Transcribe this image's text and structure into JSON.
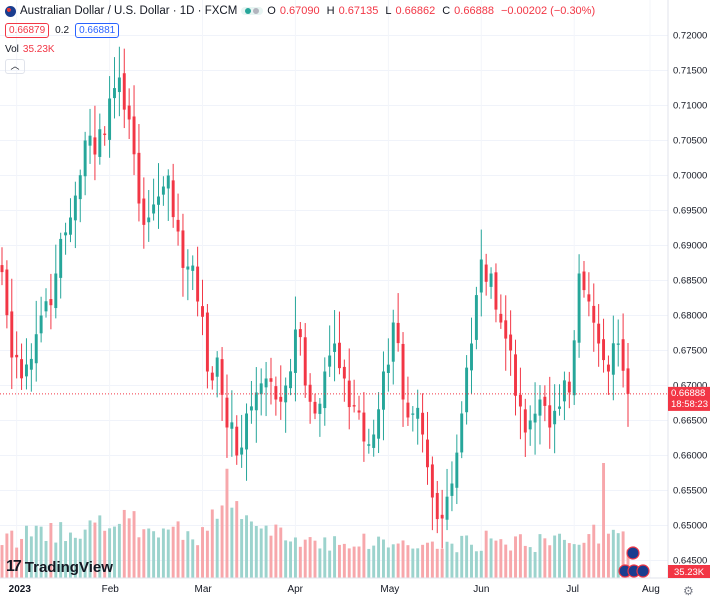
{
  "legend": {
    "symbol": "Australian Dollar / U.S. Dollar · 1D · FXCM",
    "o_label": "O",
    "o": "0.67090",
    "h_label": "H",
    "h": "0.67135",
    "l_label": "L",
    "l": "0.66862",
    "c_label": "C",
    "c": "0.66888",
    "change": "−0.00202 (−0.30%)",
    "bid": "0.66879",
    "spread": "0.2",
    "ask": "0.66881",
    "vol_label": "Vol",
    "vol_value": "35.23K",
    "collapse_icon": "chevron-up-icon"
  },
  "logo": {
    "text": "TradingView",
    "icon": "tradingview-logo-icon"
  },
  "colors": {
    "up": "#26a69a",
    "down": "#f23645",
    "volUp": "#9cd3cd",
    "volDown": "#f7a7ab"
  },
  "chart_data": {
    "type": "candlestick",
    "title": "Australian Dollar / U.S. Dollar · 1D · FXCM",
    "y_ticks": [
      0.645,
      0.65,
      0.655,
      0.66,
      0.665,
      0.67,
      0.675,
      0.68,
      0.685,
      0.69,
      0.695,
      0.7,
      0.705,
      0.71,
      0.715,
      0.72
    ],
    "y_tick_labels": [
      "0.64500",
      "0.65000",
      "0.65500",
      "0.66000",
      "0.66500",
      "0.67000",
      "0.67500",
      "0.68000",
      "0.68500",
      "0.69000",
      "0.69500",
      "0.70000",
      "0.70500",
      "0.71000",
      "0.71500",
      "0.72000"
    ],
    "x_labels": [
      "2023",
      "Feb",
      "Mar",
      "Apr",
      "May",
      "Jun",
      "Jul",
      "Aug"
    ],
    "ylim": [
      0.6425,
      0.7225
    ],
    "last_price": "0.66888",
    "countdown": "18:58:23",
    "volume_label": "35.23K",
    "anchors": [
      [
        0,
        0.6862
      ],
      [
        2,
        0.674
      ],
      [
        5,
        0.673
      ],
      [
        8,
        0.68
      ],
      [
        11,
        0.686
      ],
      [
        14,
        0.694
      ],
      [
        17,
        0.705
      ],
      [
        19,
        0.703
      ],
      [
        22,
        0.711
      ],
      [
        24,
        0.714
      ],
      [
        26,
        0.708
      ],
      [
        28,
        0.696
      ],
      [
        30,
        0.694
      ],
      [
        32,
        0.697
      ],
      [
        34,
        0.7
      ],
      [
        36,
        0.692
      ],
      [
        38,
        0.687
      ],
      [
        40,
        0.682
      ],
      [
        42,
        0.672
      ],
      [
        44,
        0.674
      ],
      [
        46,
        0.664
      ],
      [
        48,
        0.66
      ],
      [
        50,
        0.666
      ],
      [
        52,
        0.669
      ],
      [
        54,
        0.671
      ],
      [
        56,
        0.668
      ],
      [
        58,
        0.67
      ],
      [
        60,
        0.678
      ],
      [
        62,
        0.67
      ],
      [
        64,
        0.666
      ],
      [
        66,
        0.672
      ],
      [
        68,
        0.676
      ],
      [
        70,
        0.671
      ],
      [
        72,
        0.667
      ],
      [
        74,
        0.662
      ],
      [
        76,
        0.663
      ],
      [
        78,
        0.672
      ],
      [
        80,
        0.679
      ],
      [
        82,
        0.668
      ],
      [
        84,
        0.666
      ],
      [
        86,
        0.663
      ],
      [
        88,
        0.654
      ],
      [
        90,
        0.651
      ],
      [
        92,
        0.656
      ],
      [
        94,
        0.666
      ],
      [
        96,
        0.676
      ],
      [
        98,
        0.688
      ],
      [
        100,
        0.686
      ],
      [
        102,
        0.679
      ],
      [
        104,
        0.675
      ],
      [
        106,
        0.667
      ],
      [
        108,
        0.665
      ],
      [
        110,
        0.668
      ],
      [
        112,
        0.664
      ],
      [
        114,
        0.667
      ],
      [
        116,
        0.669
      ],
      [
        118,
        0.686
      ],
      [
        120,
        0.682
      ],
      [
        122,
        0.676
      ],
      [
        124,
        0.672
      ],
      [
        126,
        0.676
      ],
      [
        128,
        0.6688
      ]
    ],
    "volume_profile": [
      [
        0,
        0.35
      ],
      [
        14,
        0.45
      ],
      [
        25,
        0.5
      ],
      [
        40,
        0.4
      ],
      [
        46,
        0.72
      ],
      [
        52,
        0.45
      ],
      [
        60,
        0.35
      ],
      [
        80,
        0.32
      ],
      [
        90,
        0.28
      ],
      [
        100,
        0.35
      ],
      [
        110,
        0.32
      ],
      [
        120,
        0.4
      ],
      [
        128,
        0.35
      ]
    ]
  }
}
